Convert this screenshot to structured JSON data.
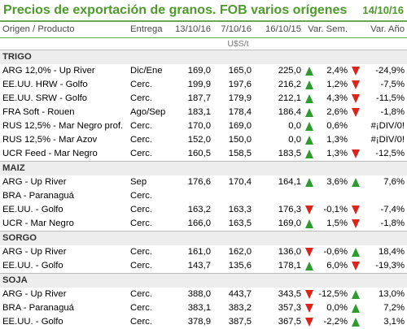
{
  "title": "Precios de exportación de granos. FOB varios orígenes",
  "date": "14/10/16",
  "columns": {
    "origen": "Origen / Producto",
    "entrega": "Entrega",
    "d1": "13/10/16",
    "d2": "7/10/16",
    "d3": "16/10/15",
    "var_sem": "Var. Sem.",
    "var_anio": "Var. Año"
  },
  "units": "U$S/t",
  "sections": [
    {
      "name": "TRIGO",
      "rows": [
        {
          "origen": "ARG 12,0% - Up River",
          "entrega": "Dic/Ene",
          "d1": "169,0",
          "d2": "165,0",
          "d3": "225,0",
          "sem_icon": "up",
          "var_sem": "2,4%",
          "anio_icon": "down",
          "var_anio": "-24,9%"
        },
        {
          "origen": "EE.UU. HRW - Golfo",
          "entrega": "Cerc.",
          "d1": "199,9",
          "d2": "197,6",
          "d3": "216,2",
          "sem_icon": "up",
          "var_sem": "1,2%",
          "anio_icon": "down",
          "var_anio": "-7,5%"
        },
        {
          "origen": "EE.UU. SRW - Golfo",
          "entrega": "Cerc.",
          "d1": "187,7",
          "d2": "179,9",
          "d3": "212,1",
          "sem_icon": "up",
          "var_sem": "4,3%",
          "anio_icon": "down",
          "var_anio": "-11,5%"
        },
        {
          "origen": "FRA Soft - Rouen",
          "entrega": "Ago/Sep",
          "d1": "183,1",
          "d2": "178,4",
          "d3": "186,4",
          "sem_icon": "up",
          "var_sem": "2,6%",
          "anio_icon": "down",
          "var_anio": "-1,8%"
        },
        {
          "origen": "RUS 12,5% - Mar Negro prof.",
          "entrega": "Cerc.",
          "d1": "170,0",
          "d2": "169,0",
          "d3": "0,0",
          "sem_icon": "up",
          "var_sem": "0,6%",
          "anio_icon": "",
          "var_anio": "#¡DIV/0!"
        },
        {
          "origen": "RUS 12,5% - Mar Azov",
          "entrega": "Cerc.",
          "d1": "152,0",
          "d2": "150,0",
          "d3": "0,0",
          "sem_icon": "up",
          "var_sem": "1,3%",
          "anio_icon": "",
          "var_anio": "#¡DIV/0!"
        },
        {
          "origen": "UCR Feed - Mar Negro",
          "entrega": "Cerc.",
          "d1": "160,5",
          "d2": "158,5",
          "d3": "183,5",
          "sem_icon": "up",
          "var_sem": "1,3%",
          "anio_icon": "down",
          "var_anio": "-12,5%"
        }
      ]
    },
    {
      "name": "MAIZ",
      "rows": [
        {
          "origen": "ARG - Up River",
          "entrega": "Sep",
          "d1": "176,6",
          "d2": "170,4",
          "d3": "164,1",
          "sem_icon": "up",
          "var_sem": "3,6%",
          "anio_icon": "up",
          "var_anio": "7,6%"
        },
        {
          "origen": "BRA - Paranaguá",
          "entrega": "Cerc.",
          "d1": "",
          "d2": "",
          "d3": "",
          "sem_icon": "",
          "var_sem": "",
          "anio_icon": "",
          "var_anio": ""
        },
        {
          "origen": "EE.UU. - Golfo",
          "entrega": "Cerc.",
          "d1": "163,2",
          "d2": "163,3",
          "d3": "176,3",
          "sem_icon": "down",
          "var_sem": "-0,1%",
          "anio_icon": "down",
          "var_anio": "-7,4%"
        },
        {
          "origen": "UCR - Mar Negro",
          "entrega": "Cerc.",
          "d1": "166,0",
          "d2": "163,5",
          "d3": "169,0",
          "sem_icon": "up",
          "var_sem": "1,5%",
          "anio_icon": "down",
          "var_anio": "-1,8%"
        }
      ]
    },
    {
      "name": "SORGO",
      "rows": [
        {
          "origen": "ARG - Up River",
          "entrega": "Cerc.",
          "d1": "161,0",
          "d2": "162,0",
          "d3": "136,0",
          "sem_icon": "down",
          "var_sem": "-0,6%",
          "anio_icon": "up",
          "var_anio": "18,4%"
        },
        {
          "origen": "EE.UU. - Golfo",
          "entrega": "Cerc.",
          "d1": "143,7",
          "d2": "135,6",
          "d3": "178,1",
          "sem_icon": "up",
          "var_sem": "6,0%",
          "anio_icon": "down",
          "var_anio": "-19,3%"
        }
      ]
    },
    {
      "name": "SOJA",
      "rows": [
        {
          "origen": "ARG - Up River",
          "entrega": "Cerc.",
          "d1": "388,0",
          "d2": "443,7",
          "d3": "343,5",
          "sem_icon": "down",
          "var_sem": "-12,5%",
          "anio_icon": "up",
          "var_anio": "13,0%"
        },
        {
          "origen": "BRA - Paranaguá",
          "entrega": "Cerc.",
          "d1": "383,1",
          "d2": "383,2",
          "d3": "357,3",
          "sem_icon": "down",
          "var_sem": "0,0%",
          "anio_icon": "up",
          "var_anio": "7,2%"
        },
        {
          "origen": "EE.UU. - Golfo",
          "entrega": "Cerc.",
          "d1": "378,9",
          "d2": "387,5",
          "d3": "367,5",
          "sem_icon": "down",
          "var_sem": "-2,2%",
          "anio_icon": "up",
          "var_anio": "3,1%"
        }
      ]
    }
  ]
}
